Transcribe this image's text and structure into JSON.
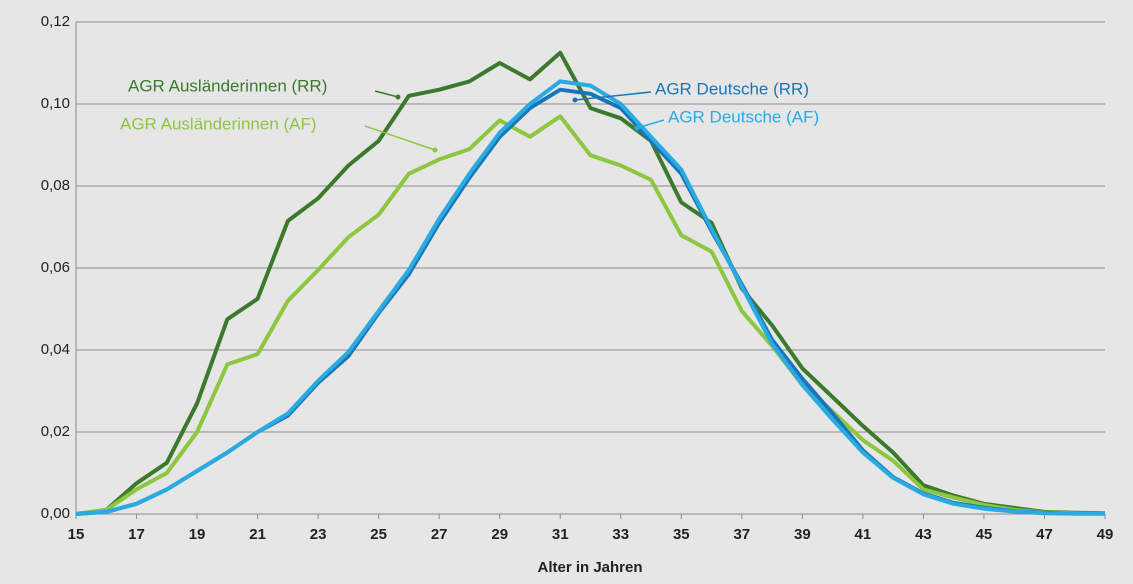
{
  "chart_data": {
    "type": "line",
    "x_label": "Alter in Jahren",
    "x": [
      15,
      16,
      17,
      18,
      19,
      20,
      21,
      22,
      23,
      24,
      25,
      26,
      27,
      28,
      29,
      30,
      31,
      32,
      33,
      34,
      35,
      36,
      37,
      38,
      39,
      40,
      41,
      42,
      43,
      44,
      45,
      46,
      47,
      48,
      49
    ],
    "xlim": [
      15,
      49
    ],
    "xticks": [
      15,
      17,
      19,
      21,
      23,
      25,
      27,
      29,
      31,
      33,
      35,
      37,
      39,
      41,
      43,
      45,
      47,
      49
    ],
    "ylim": [
      0,
      0.12
    ],
    "yticks": [
      {
        "value": 0,
        "label": "0,00"
      },
      {
        "value": 0.02,
        "label": "0,02"
      },
      {
        "value": 0.04,
        "label": "0,04"
      },
      {
        "value": 0.06,
        "label": "0,06"
      },
      {
        "value": 0.08,
        "label": "0,08"
      },
      {
        "value": 0.1,
        "label": "0,10"
      },
      {
        "value": 0.12,
        "label": "0,12"
      }
    ],
    "grid": true,
    "series": [
      {
        "name": "AGR Ausländerinnen (RR)",
        "color": "#3b7a2c",
        "values": [
          0,
          0.001,
          0.0075,
          0.0125,
          0.027,
          0.0475,
          0.0525,
          0.0715,
          0.077,
          0.085,
          0.091,
          0.102,
          0.1035,
          0.1055,
          0.11,
          0.106,
          0.1125,
          0.099,
          0.0965,
          0.091,
          0.076,
          0.071,
          0.055,
          0.046,
          0.0355,
          0.0285,
          0.0215,
          0.015,
          0.007,
          0.0045,
          0.0025,
          0.0015,
          0.0005,
          0.0003,
          0.0002
        ]
      },
      {
        "name": "AGR Ausländerinnen (AF)",
        "color": "#8dc63f",
        "values": [
          0,
          0.001,
          0.006,
          0.01,
          0.02,
          0.0365,
          0.039,
          0.052,
          0.0595,
          0.0675,
          0.073,
          0.083,
          0.0865,
          0.089,
          0.096,
          0.092,
          0.097,
          0.0875,
          0.085,
          0.0815,
          0.068,
          0.064,
          0.0495,
          0.041,
          0.0315,
          0.025,
          0.018,
          0.013,
          0.006,
          0.004,
          0.0022,
          0.001,
          0.0004,
          0.0002,
          0.0001
        ]
      },
      {
        "name": "AGR Deutsche (RR)",
        "color": "#1a75b8",
        "values": [
          0,
          0.0005,
          0.0025,
          0.006,
          0.0105,
          0.015,
          0.02,
          0.024,
          0.032,
          0.0385,
          0.049,
          0.0585,
          0.071,
          0.082,
          0.092,
          0.099,
          0.1035,
          0.1025,
          0.099,
          0.091,
          0.083,
          0.069,
          0.056,
          0.0425,
          0.033,
          0.0245,
          0.0155,
          0.009,
          0.005,
          0.0027,
          0.0015,
          0.0007,
          0.0003,
          0.0001,
          0.0001
        ]
      },
      {
        "name": "AGR Deutsche (AF)",
        "color": "#29abe2",
        "values": [
          0,
          0.0005,
          0.0025,
          0.006,
          0.0105,
          0.015,
          0.02,
          0.0245,
          0.0325,
          0.0395,
          0.0495,
          0.0595,
          0.072,
          0.083,
          0.093,
          0.1,
          0.1055,
          0.1045,
          0.1,
          0.092,
          0.084,
          0.0695,
          0.0555,
          0.0415,
          0.0315,
          0.023,
          0.015,
          0.0088,
          0.0048,
          0.0025,
          0.0013,
          0.0006,
          0.0002,
          0.0001,
          0.0001
        ]
      }
    ]
  }
}
